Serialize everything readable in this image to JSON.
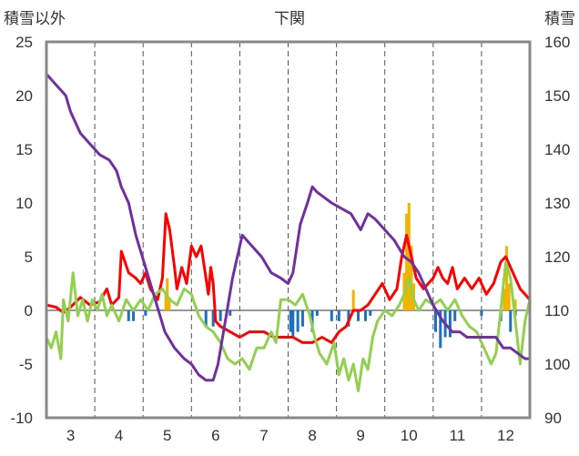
{
  "chart_data": {
    "type": "line",
    "title": "下関",
    "left_axis_label": "積雪以外",
    "right_axis_label": "積雪",
    "x_ticks": [
      "3",
      "4",
      "5",
      "6",
      "7",
      "8",
      "9",
      "10",
      "11",
      "12"
    ],
    "xlim": [
      2.5,
      12.5
    ],
    "ylim_left": [
      -10,
      25
    ],
    "ylim_right": [
      90,
      160
    ],
    "left_ticks": [
      "-10",
      "-5",
      "0",
      "5",
      "10",
      "15",
      "20",
      "25"
    ],
    "right_ticks": [
      "90",
      "100",
      "110",
      "120",
      "130",
      "140",
      "150",
      "160"
    ],
    "grid": "dashed vertical at months, solid horizontal at 0",
    "series": [
      {
        "color": "#f0b400",
        "type": "bar",
        "axis": "left",
        "points": [
          [
            4.97,
            1.5
          ],
          [
            5.0,
            3.0
          ],
          [
            5.04,
            1.2
          ],
          [
            8.85,
            1.9
          ],
          [
            9.9,
            3.5
          ],
          [
            9.95,
            9.0
          ],
          [
            10.0,
            10.0
          ],
          [
            10.05,
            6.0
          ],
          [
            10.1,
            2.5
          ],
          [
            11.97,
            2.0
          ],
          [
            12.02,
            6.0
          ],
          [
            12.07,
            2.5
          ],
          [
            12.2,
            1.0
          ]
        ]
      },
      {
        "color": "#1f6fbf",
        "type": "bar",
        "axis": "left",
        "points": [
          [
            4.2,
            -1.0
          ],
          [
            4.3,
            -1.0
          ],
          [
            4.55,
            -0.5
          ],
          [
            5.8,
            -1.5
          ],
          [
            5.95,
            -1.5
          ],
          [
            6.1,
            -1.0
          ],
          [
            6.3,
            -0.5
          ],
          [
            7.55,
            -2.0
          ],
          [
            7.6,
            -2.5
          ],
          [
            7.7,
            -2.0
          ],
          [
            7.8,
            -1.5
          ],
          [
            8.0,
            -2.0
          ],
          [
            8.1,
            -0.5
          ],
          [
            8.4,
            -1.0
          ],
          [
            8.55,
            -1.0
          ],
          [
            8.75,
            -1.5
          ],
          [
            8.95,
            -1.0
          ],
          [
            9.1,
            -1.0
          ],
          [
            9.2,
            -0.5
          ],
          [
            10.55,
            -2.0
          ],
          [
            10.65,
            -3.5
          ],
          [
            10.75,
            -2.5
          ],
          [
            10.85,
            -2.5
          ],
          [
            10.95,
            -1.0
          ],
          [
            11.5,
            -0.5
          ],
          [
            11.9,
            -1.0
          ],
          [
            12.1,
            -2.0
          ],
          [
            12.2,
            -0.5
          ]
        ]
      },
      {
        "color": "#ff0000",
        "type": "line",
        "axis": "left",
        "points": [
          [
            2.5,
            0.5
          ],
          [
            2.7,
            0.3
          ],
          [
            2.85,
            -0.2
          ],
          [
            3.0,
            0.3
          ],
          [
            3.2,
            1.2
          ],
          [
            3.4,
            0.5
          ],
          [
            3.6,
            0.8
          ],
          [
            3.75,
            2.0
          ],
          [
            3.85,
            0.5
          ],
          [
            4.0,
            1.2
          ],
          [
            4.05,
            5.5
          ],
          [
            4.2,
            3.5
          ],
          [
            4.35,
            3.0
          ],
          [
            4.45,
            2.5
          ],
          [
            4.55,
            3.5
          ],
          [
            4.65,
            2.0
          ],
          [
            4.8,
            1.0
          ],
          [
            4.9,
            3.0
          ],
          [
            4.97,
            9.0
          ],
          [
            5.05,
            7.5
          ],
          [
            5.15,
            4.0
          ],
          [
            5.2,
            2.0
          ],
          [
            5.3,
            4.0
          ],
          [
            5.4,
            2.5
          ],
          [
            5.5,
            6.0
          ],
          [
            5.6,
            5.0
          ],
          [
            5.7,
            6.0
          ],
          [
            5.75,
            4.5
          ],
          [
            5.85,
            1.5
          ],
          [
            5.9,
            4.0
          ],
          [
            5.95,
            2.5
          ],
          [
            6.0,
            -1.0
          ],
          [
            6.1,
            -1.5
          ],
          [
            6.3,
            -2.0
          ],
          [
            6.5,
            -2.5
          ],
          [
            6.7,
            -2.0
          ],
          [
            7.0,
            -2.0
          ],
          [
            7.2,
            -2.5
          ],
          [
            7.4,
            -2.5
          ],
          [
            7.6,
            -2.5
          ],
          [
            7.8,
            -3.0
          ],
          [
            8.0,
            -3.0
          ],
          [
            8.2,
            -2.5
          ],
          [
            8.4,
            -3.0
          ],
          [
            8.55,
            -2.0
          ],
          [
            8.7,
            -1.5
          ],
          [
            8.85,
            0.0
          ],
          [
            9.0,
            0.0
          ],
          [
            9.15,
            0.5
          ],
          [
            9.3,
            1.5
          ],
          [
            9.45,
            2.5
          ],
          [
            9.6,
            1.0
          ],
          [
            9.75,
            2.0
          ],
          [
            9.85,
            5.0
          ],
          [
            9.95,
            7.0
          ],
          [
            10.05,
            5.0
          ],
          [
            10.15,
            3.0
          ],
          [
            10.3,
            2.0
          ],
          [
            10.5,
            3.0
          ],
          [
            10.6,
            4.0
          ],
          [
            10.7,
            3.0
          ],
          [
            10.8,
            2.5
          ],
          [
            10.9,
            4.0
          ],
          [
            11.0,
            2.0
          ],
          [
            11.15,
            3.0
          ],
          [
            11.3,
            2.0
          ],
          [
            11.45,
            3.0
          ],
          [
            11.6,
            1.5
          ],
          [
            11.75,
            2.5
          ],
          [
            11.9,
            4.5
          ],
          [
            12.0,
            5.0
          ],
          [
            12.1,
            4.0
          ],
          [
            12.2,
            3.0
          ],
          [
            12.3,
            2.0
          ],
          [
            12.4,
            1.5
          ],
          [
            12.5,
            1.0
          ]
        ]
      },
      {
        "color": "#92d050",
        "type": "line",
        "axis": "left",
        "points": [
          [
            2.5,
            -2.5
          ],
          [
            2.6,
            -3.5
          ],
          [
            2.7,
            -2.0
          ],
          [
            2.8,
            -4.5
          ],
          [
            2.85,
            1.0
          ],
          [
            2.95,
            -1.0
          ],
          [
            3.05,
            3.5
          ],
          [
            3.15,
            -0.5
          ],
          [
            3.25,
            1.0
          ],
          [
            3.35,
            -1.0
          ],
          [
            3.45,
            1.0
          ],
          [
            3.55,
            0.0
          ],
          [
            3.65,
            1.5
          ],
          [
            3.75,
            -0.5
          ],
          [
            3.85,
            0.5
          ],
          [
            4.0,
            -1.0
          ],
          [
            4.15,
            1.0
          ],
          [
            4.3,
            0.0
          ],
          [
            4.45,
            1.0
          ],
          [
            4.6,
            0.0
          ],
          [
            4.75,
            1.5
          ],
          [
            4.9,
            2.0
          ],
          [
            5.05,
            1.0
          ],
          [
            5.2,
            0.5
          ],
          [
            5.35,
            2.0
          ],
          [
            5.5,
            1.5
          ],
          [
            5.65,
            -0.5
          ],
          [
            5.8,
            -1.5
          ],
          [
            5.95,
            -2.0
          ],
          [
            6.1,
            -3.0
          ],
          [
            6.25,
            -4.5
          ],
          [
            6.4,
            -5.0
          ],
          [
            6.55,
            -4.5
          ],
          [
            6.7,
            -5.5
          ],
          [
            6.85,
            -3.5
          ],
          [
            7.0,
            -3.5
          ],
          [
            7.15,
            -2.0
          ],
          [
            7.25,
            -3.0
          ],
          [
            7.35,
            1.0
          ],
          [
            7.5,
            1.0
          ],
          [
            7.65,
            0.5
          ],
          [
            7.8,
            1.5
          ],
          [
            7.95,
            -0.5
          ],
          [
            8.05,
            -2.5
          ],
          [
            8.15,
            -4.0
          ],
          [
            8.3,
            -5.0
          ],
          [
            8.45,
            -3.0
          ],
          [
            8.55,
            -6.0
          ],
          [
            8.65,
            -4.5
          ],
          [
            8.75,
            -6.5
          ],
          [
            8.85,
            -5.0
          ],
          [
            8.95,
            -7.5
          ],
          [
            9.05,
            -4.5
          ],
          [
            9.15,
            -5.5
          ],
          [
            9.25,
            -2.5
          ],
          [
            9.35,
            -1.0
          ],
          [
            9.5,
            0.0
          ],
          [
            9.65,
            -0.5
          ],
          [
            9.8,
            0.5
          ],
          [
            9.9,
            1.5
          ],
          [
            10.0,
            3.0
          ],
          [
            10.1,
            1.0
          ],
          [
            10.2,
            0.0
          ],
          [
            10.35,
            1.0
          ],
          [
            10.5,
            0.5
          ],
          [
            10.65,
            1.0
          ],
          [
            10.8,
            0.0
          ],
          [
            10.95,
            1.0
          ],
          [
            11.1,
            -0.5
          ],
          [
            11.25,
            -1.5
          ],
          [
            11.4,
            -2.0
          ],
          [
            11.55,
            -3.5
          ],
          [
            11.7,
            -5.0
          ],
          [
            11.8,
            -4.0
          ],
          [
            11.9,
            0.0
          ],
          [
            12.0,
            4.5
          ],
          [
            12.1,
            3.0
          ],
          [
            12.2,
            -1.0
          ],
          [
            12.3,
            -5.0
          ],
          [
            12.4,
            -1.0
          ],
          [
            12.5,
            1.0
          ]
        ]
      },
      {
        "color": "#7030a0",
        "type": "line",
        "axis": "right",
        "points": [
          [
            2.5,
            154
          ],
          [
            2.7,
            152
          ],
          [
            2.9,
            150
          ],
          [
            3.0,
            147
          ],
          [
            3.2,
            143
          ],
          [
            3.4,
            141
          ],
          [
            3.6,
            139
          ],
          [
            3.8,
            138
          ],
          [
            3.95,
            136
          ],
          [
            4.05,
            133
          ],
          [
            4.2,
            130
          ],
          [
            4.35,
            124
          ],
          [
            4.55,
            118
          ],
          [
            4.75,
            112
          ],
          [
            4.95,
            106
          ],
          [
            5.15,
            103
          ],
          [
            5.35,
            101
          ],
          [
            5.5,
            100
          ],
          [
            5.65,
            98
          ],
          [
            5.8,
            97
          ],
          [
            5.95,
            97
          ],
          [
            6.05,
            100
          ],
          [
            6.2,
            108
          ],
          [
            6.35,
            116
          ],
          [
            6.55,
            124
          ],
          [
            6.75,
            122
          ],
          [
            6.95,
            120
          ],
          [
            7.15,
            117
          ],
          [
            7.35,
            116
          ],
          [
            7.5,
            115
          ],
          [
            7.6,
            117
          ],
          [
            7.75,
            126
          ],
          [
            7.9,
            130
          ],
          [
            8.0,
            133
          ],
          [
            8.1,
            132
          ],
          [
            8.25,
            131
          ],
          [
            8.4,
            130
          ],
          [
            8.6,
            129
          ],
          [
            8.8,
            128
          ],
          [
            9.0,
            125
          ],
          [
            9.15,
            128
          ],
          [
            9.3,
            127
          ],
          [
            9.5,
            125
          ],
          [
            9.7,
            123
          ],
          [
            9.9,
            120
          ],
          [
            10.05,
            119
          ],
          [
            10.2,
            117
          ],
          [
            10.35,
            114
          ],
          [
            10.5,
            111
          ],
          [
            10.7,
            108
          ],
          [
            10.9,
            106
          ],
          [
            11.05,
            106
          ],
          [
            11.2,
            105
          ],
          [
            11.4,
            105
          ],
          [
            11.6,
            105
          ],
          [
            11.8,
            105
          ],
          [
            11.95,
            103
          ],
          [
            12.1,
            103
          ],
          [
            12.25,
            102
          ],
          [
            12.4,
            101
          ],
          [
            12.5,
            101
          ]
        ]
      }
    ]
  }
}
